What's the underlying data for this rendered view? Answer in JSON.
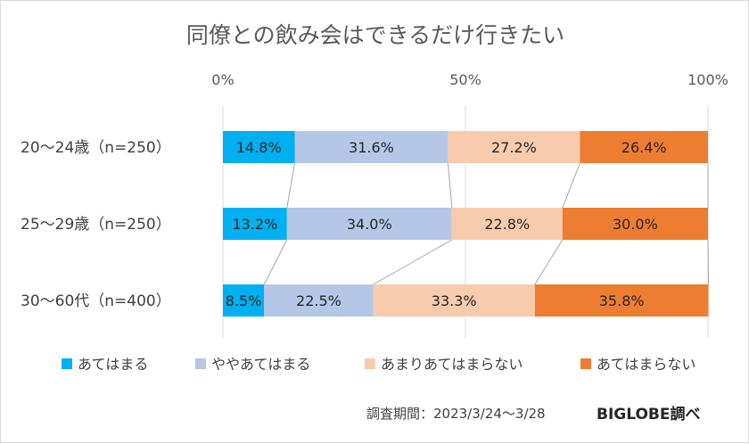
{
  "chart_data": {
    "type": "bar",
    "orientation": "horizontal-stacked-100",
    "title": "同僚との飲み会はできるだけ行きたい",
    "xlim": [
      0,
      100
    ],
    "x_ticks": [
      "0%",
      "50%",
      "100%"
    ],
    "categories": [
      "20～24歳（n=250）",
      "25～29歳（n=250）",
      "30～60代（n=400）"
    ],
    "series": [
      {
        "name": "あてはまる",
        "color": "#00b0f0",
        "values": [
          14.8,
          13.2,
          8.5
        ],
        "labels": [
          "14.8%",
          "13.2%",
          "8.5%"
        ]
      },
      {
        "name": "ややあてはまる",
        "color": "#b4c7e7",
        "values": [
          31.6,
          34.0,
          22.5
        ],
        "labels": [
          "31.6%",
          "34.0%",
          "22.5%"
        ]
      },
      {
        "name": "あまりあてはまらない",
        "color": "#f8cbad",
        "values": [
          27.2,
          22.8,
          33.3
        ],
        "labels": [
          "27.2%",
          "22.8%",
          "33.3%"
        ]
      },
      {
        "name": "あてはまらない",
        "color": "#ed7d31",
        "values": [
          26.4,
          30.0,
          35.8
        ],
        "labels": [
          "26.4%",
          "30.0%",
          "35.8%"
        ]
      }
    ],
    "legend_position": "bottom",
    "grid": true
  },
  "footer": {
    "period": "調査期間：2023/3/24～3/28",
    "brand": "BIGLOBE調べ"
  }
}
